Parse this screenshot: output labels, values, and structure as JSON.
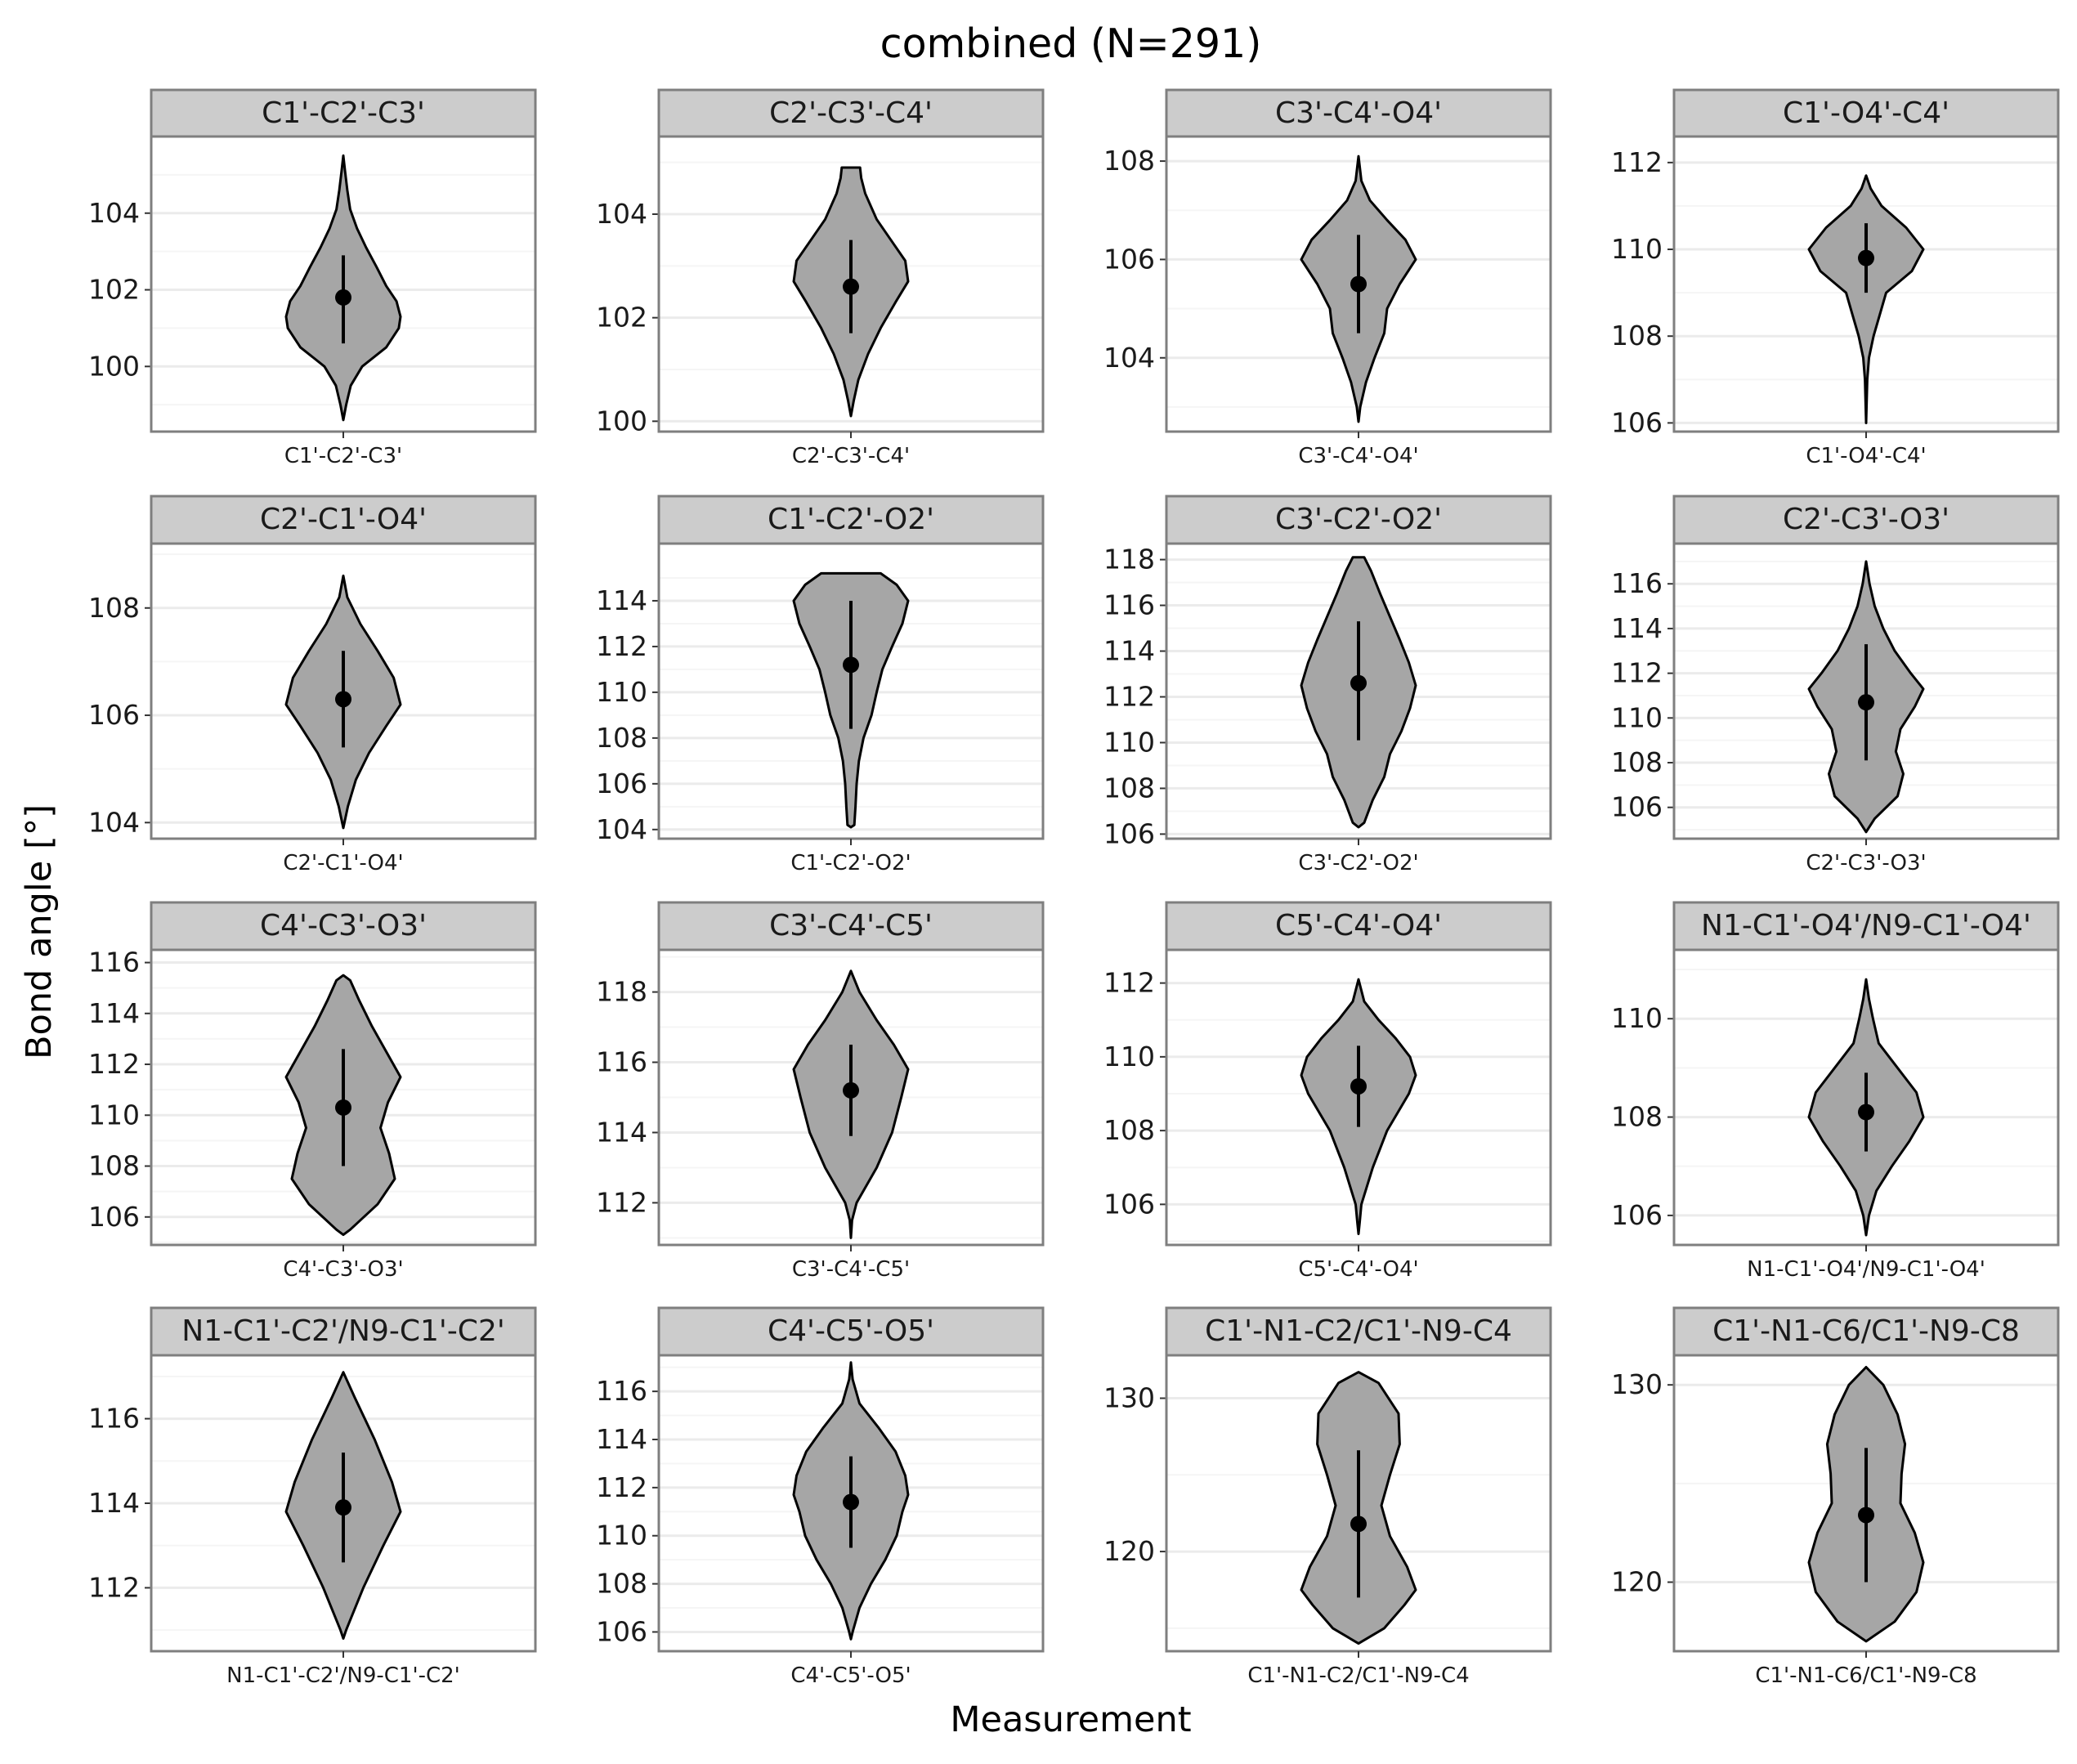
{
  "chart_data": {
    "type": "violin",
    "title": "combined (N=291)",
    "xlabel": "Measurement",
    "ylabel": "Bond angle [°]",
    "colors": {
      "violin_fill": "#a6a6a6",
      "strip_fill": "#cccccc",
      "panel_border": "#7f7f7f",
      "grid_major": "#ebebeb",
      "grid_minor": "#f5f5f5",
      "point": "#000000"
    },
    "panels": [
      {
        "label": "C1'-C2'-C3'",
        "category": "C1'-C2'-C3'",
        "ylim": [
          98.3,
          106.0
        ],
        "ticks": [
          100,
          102,
          104
        ],
        "violin": [
          [
            98.6,
            0
          ],
          [
            99.0,
            0.05
          ],
          [
            99.5,
            0.13
          ],
          [
            100.0,
            0.33
          ],
          [
            100.5,
            0.75
          ],
          [
            101.0,
            0.97
          ],
          [
            101.3,
            1.0
          ],
          [
            101.7,
            0.93
          ],
          [
            102.1,
            0.75
          ],
          [
            102.6,
            0.58
          ],
          [
            103.1,
            0.4
          ],
          [
            103.6,
            0.24
          ],
          [
            104.1,
            0.12
          ],
          [
            104.6,
            0.07
          ],
          [
            105.1,
            0.03
          ],
          [
            105.5,
            0
          ]
        ],
        "mean": 101.8,
        "lower": 100.6,
        "upper": 102.9
      },
      {
        "label": "C2'-C3'-C4'",
        "category": "C2'-C3'-C4'",
        "ylim": [
          99.8,
          105.5
        ],
        "ticks": [
          100,
          102,
          104
        ],
        "violin": [
          [
            100.1,
            0
          ],
          [
            100.4,
            0.05
          ],
          [
            100.8,
            0.13
          ],
          [
            101.3,
            0.3
          ],
          [
            101.8,
            0.52
          ],
          [
            102.3,
            0.78
          ],
          [
            102.7,
            1.0
          ],
          [
            103.1,
            0.95
          ],
          [
            103.5,
            0.7
          ],
          [
            103.9,
            0.45
          ],
          [
            104.4,
            0.25
          ],
          [
            104.7,
            0.18
          ],
          [
            104.9,
            0.16
          ],
          [
            104.9,
            0
          ]
        ],
        "mean": 102.6,
        "lower": 101.7,
        "upper": 103.5
      },
      {
        "label": "C3'-C4'-O4'",
        "category": "C3'-C4'-O4'",
        "ylim": [
          102.5,
          108.5
        ],
        "ticks": [
          104,
          106,
          108
        ],
        "violin": [
          [
            102.7,
            0
          ],
          [
            103.0,
            0.03
          ],
          [
            103.5,
            0.13
          ],
          [
            104.0,
            0.28
          ],
          [
            104.5,
            0.45
          ],
          [
            105.0,
            0.5
          ],
          [
            105.5,
            0.72
          ],
          [
            106.0,
            1.0
          ],
          [
            106.4,
            0.82
          ],
          [
            106.8,
            0.5
          ],
          [
            107.2,
            0.2
          ],
          [
            107.6,
            0.05
          ],
          [
            108.1,
            0
          ]
        ],
        "mean": 105.5,
        "lower": 104.5,
        "upper": 106.5
      },
      {
        "label": "C1'-O4'-C4'",
        "category": "C1'-O4'-C4'",
        "ylim": [
          105.8,
          112.6
        ],
        "ticks": [
          106,
          108,
          110,
          112
        ],
        "violin": [
          [
            106.0,
            0
          ],
          [
            107.0,
            0.02
          ],
          [
            107.5,
            0.05
          ],
          [
            108.0,
            0.13
          ],
          [
            108.5,
            0.24
          ],
          [
            109.0,
            0.35
          ],
          [
            109.5,
            0.8
          ],
          [
            110.0,
            1.0
          ],
          [
            110.5,
            0.7
          ],
          [
            111.0,
            0.27
          ],
          [
            111.4,
            0.08
          ],
          [
            111.7,
            0
          ]
        ],
        "mean": 109.8,
        "lower": 109.0,
        "upper": 110.6
      },
      {
        "label": "C2'-C1'-O4'",
        "category": "C2'-C1'-O4'",
        "ylim": [
          103.7,
          109.2
        ],
        "ticks": [
          104,
          106,
          108
        ],
        "violin": [
          [
            103.9,
            0
          ],
          [
            104.3,
            0.08
          ],
          [
            104.8,
            0.22
          ],
          [
            105.3,
            0.45
          ],
          [
            105.8,
            0.75
          ],
          [
            106.2,
            1.0
          ],
          [
            106.7,
            0.88
          ],
          [
            107.2,
            0.6
          ],
          [
            107.7,
            0.3
          ],
          [
            108.2,
            0.07
          ],
          [
            108.6,
            0
          ]
        ],
        "mean": 106.3,
        "lower": 105.4,
        "upper": 107.2
      },
      {
        "label": "C1'-C2'-O2'",
        "category": "C1'-C2'-O2'",
        "ylim": [
          103.6,
          116.5
        ],
        "ticks": [
          104,
          106,
          108,
          110,
          112,
          114
        ],
        "violin": [
          [
            104.1,
            0
          ],
          [
            104.2,
            0.06
          ],
          [
            105.0,
            0.08
          ],
          [
            106.0,
            0.1
          ],
          [
            107.0,
            0.14
          ],
          [
            108.0,
            0.22
          ],
          [
            109.0,
            0.36
          ],
          [
            110.0,
            0.45
          ],
          [
            111.0,
            0.55
          ],
          [
            112.0,
            0.72
          ],
          [
            113.0,
            0.9
          ],
          [
            114.0,
            1.0
          ],
          [
            114.7,
            0.8
          ],
          [
            115.2,
            0.52
          ],
          [
            115.2,
            0
          ]
        ],
        "mean": 111.2,
        "lower": 108.4,
        "upper": 114.0
      },
      {
        "label": "C3'-C2'-O2'",
        "category": "C3'-C2'-O2'",
        "ylim": [
          105.8,
          118.7
        ],
        "ticks": [
          106,
          108,
          110,
          112,
          114,
          116,
          118
        ],
        "violin": [
          [
            106.3,
            0
          ],
          [
            106.5,
            0.1
          ],
          [
            107.5,
            0.25
          ],
          [
            108.5,
            0.45
          ],
          [
            109.5,
            0.55
          ],
          [
            110.5,
            0.75
          ],
          [
            111.5,
            0.9
          ],
          [
            112.5,
            1.0
          ],
          [
            113.5,
            0.88
          ],
          [
            114.5,
            0.72
          ],
          [
            115.5,
            0.55
          ],
          [
            116.5,
            0.38
          ],
          [
            117.5,
            0.22
          ],
          [
            118.1,
            0.1
          ],
          [
            118.1,
            0
          ]
        ],
        "mean": 112.6,
        "lower": 110.1,
        "upper": 115.3
      },
      {
        "label": "C2'-C3'-O3'",
        "category": "C2'-C3'-O3'",
        "ylim": [
          104.6,
          117.8
        ],
        "ticks": [
          106,
          108,
          110,
          112,
          114,
          116
        ],
        "violin": [
          [
            104.9,
            0
          ],
          [
            105.5,
            0.15
          ],
          [
            106.5,
            0.55
          ],
          [
            107.5,
            0.65
          ],
          [
            108.5,
            0.52
          ],
          [
            109.5,
            0.6
          ],
          [
            110.5,
            0.85
          ],
          [
            111.3,
            1.0
          ],
          [
            112.0,
            0.78
          ],
          [
            113.0,
            0.5
          ],
          [
            114.0,
            0.3
          ],
          [
            115.0,
            0.15
          ],
          [
            116.0,
            0.06
          ],
          [
            117.0,
            0
          ]
        ],
        "mean": 110.7,
        "lower": 108.1,
        "upper": 113.3
      },
      {
        "label": "C4'-C3'-O3'",
        "category": "C4'-C3'-O3'",
        "ylim": [
          104.9,
          116.5
        ],
        "ticks": [
          106,
          108,
          110,
          112,
          114,
          116
        ],
        "violin": [
          [
            105.3,
            0
          ],
          [
            105.5,
            0.12
          ],
          [
            106.5,
            0.6
          ],
          [
            107.5,
            0.9
          ],
          [
            108.5,
            0.8
          ],
          [
            109.5,
            0.65
          ],
          [
            110.5,
            0.78
          ],
          [
            111.5,
            1.0
          ],
          [
            112.5,
            0.75
          ],
          [
            113.5,
            0.5
          ],
          [
            114.5,
            0.28
          ],
          [
            115.3,
            0.12
          ],
          [
            115.5,
            0
          ]
        ],
        "mean": 110.3,
        "lower": 108.0,
        "upper": 112.6
      },
      {
        "label": "C3'-C4'-C5'",
        "category": "C3'-C4'-C5'",
        "ylim": [
          110.8,
          119.2
        ],
        "ticks": [
          112,
          114,
          116,
          118
        ],
        "violin": [
          [
            111.0,
            0
          ],
          [
            111.5,
            0.02
          ],
          [
            112.0,
            0.1
          ],
          [
            113.0,
            0.45
          ],
          [
            114.0,
            0.72
          ],
          [
            115.0,
            0.88
          ],
          [
            115.8,
            1.0
          ],
          [
            116.5,
            0.75
          ],
          [
            117.2,
            0.45
          ],
          [
            118.0,
            0.15
          ],
          [
            118.6,
            0
          ]
        ],
        "mean": 115.2,
        "lower": 113.9,
        "upper": 116.5
      },
      {
        "label": "C5'-C4'-O4'",
        "category": "C5'-C4'-O4'",
        "ylim": [
          104.9,
          112.9
        ],
        "ticks": [
          106,
          108,
          110,
          112
        ],
        "violin": [
          [
            105.2,
            0
          ],
          [
            105.5,
            0.02
          ],
          [
            106.0,
            0.05
          ],
          [
            107.0,
            0.25
          ],
          [
            108.0,
            0.5
          ],
          [
            109.0,
            0.88
          ],
          [
            109.5,
            1.0
          ],
          [
            110.0,
            0.9
          ],
          [
            110.5,
            0.65
          ],
          [
            111.0,
            0.35
          ],
          [
            111.5,
            0.1
          ],
          [
            112.1,
            0
          ]
        ],
        "mean": 109.2,
        "lower": 108.1,
        "upper": 110.3
      },
      {
        "label": "N1-C1'-O4'/N9-C1'-O4'",
        "category": "N1-C1'-O4'/N9-C1'-O4'",
        "ylim": [
          105.4,
          111.4
        ],
        "ticks": [
          106,
          108,
          110
        ],
        "violin": [
          [
            105.6,
            0
          ],
          [
            106.0,
            0.05
          ],
          [
            106.5,
            0.18
          ],
          [
            107.0,
            0.45
          ],
          [
            107.5,
            0.75
          ],
          [
            108.0,
            1.0
          ],
          [
            108.5,
            0.88
          ],
          [
            109.0,
            0.55
          ],
          [
            109.5,
            0.22
          ],
          [
            110.0,
            0.12
          ],
          [
            110.4,
            0.05
          ],
          [
            110.8,
            0
          ]
        ],
        "mean": 108.1,
        "lower": 107.3,
        "upper": 108.9
      },
      {
        "label": "N1-C1'-C2'/N9-C1'-C2'",
        "category": "N1-C1'-C2'/N9-C1'-C2'",
        "ylim": [
          110.5,
          117.5
        ],
        "ticks": [
          112,
          114,
          116
        ],
        "violin": [
          [
            110.8,
            0
          ],
          [
            111.0,
            0.05
          ],
          [
            112.0,
            0.35
          ],
          [
            113.0,
            0.7
          ],
          [
            113.8,
            1.0
          ],
          [
            114.5,
            0.85
          ],
          [
            115.5,
            0.55
          ],
          [
            116.5,
            0.2
          ],
          [
            117.1,
            0
          ]
        ],
        "mean": 113.9,
        "lower": 112.6,
        "upper": 115.2
      },
      {
        "label": "C4'-C5'-O5'",
        "category": "C4'-C5'-O5'",
        "ylim": [
          105.2,
          117.5
        ],
        "ticks": [
          106,
          108,
          110,
          112,
          114,
          116
        ],
        "violin": [
          [
            105.7,
            0
          ],
          [
            106.0,
            0.03
          ],
          [
            107.0,
            0.15
          ],
          [
            108.0,
            0.35
          ],
          [
            109.0,
            0.6
          ],
          [
            110.0,
            0.8
          ],
          [
            111.0,
            0.9
          ],
          [
            111.7,
            1.0
          ],
          [
            112.5,
            0.95
          ],
          [
            113.5,
            0.78
          ],
          [
            114.5,
            0.48
          ],
          [
            115.5,
            0.15
          ],
          [
            116.5,
            0.03
          ],
          [
            117.2,
            0
          ]
        ],
        "mean": 111.4,
        "lower": 109.5,
        "upper": 113.3
      },
      {
        "label": "C1'-N1-C2/C1'-N9-C4",
        "category": "C1'-N1-C2/C1'-N9-C4",
        "ylim": [
          113.5,
          132.8
        ],
        "ticks": [
          120,
          130
        ],
        "violin": [
          [
            114.0,
            0
          ],
          [
            115.0,
            0.45
          ],
          [
            116.5,
            0.8
          ],
          [
            117.5,
            1.0
          ],
          [
            119.0,
            0.85
          ],
          [
            121.0,
            0.55
          ],
          [
            123.0,
            0.4
          ],
          [
            125.0,
            0.55
          ],
          [
            127.0,
            0.72
          ],
          [
            129.0,
            0.7
          ],
          [
            131.0,
            0.35
          ],
          [
            131.7,
            0
          ]
        ],
        "mean": 121.8,
        "lower": 117.0,
        "upper": 126.6
      },
      {
        "label": "C1'-N1-C6/C1'-N9-C8",
        "category": "C1'-N1-C6/C1'-N9-C8",
        "ylim": [
          116.5,
          131.5
        ],
        "ticks": [
          120,
          130
        ],
        "violin": [
          [
            117.0,
            0
          ],
          [
            118.0,
            0.5
          ],
          [
            119.5,
            0.88
          ],
          [
            121.0,
            1.0
          ],
          [
            122.5,
            0.85
          ],
          [
            124.0,
            0.6
          ],
          [
            125.5,
            0.62
          ],
          [
            127.0,
            0.68
          ],
          [
            128.5,
            0.55
          ],
          [
            130.0,
            0.3
          ],
          [
            130.9,
            0
          ]
        ],
        "mean": 123.4,
        "lower": 120.0,
        "upper": 126.8
      }
    ]
  }
}
